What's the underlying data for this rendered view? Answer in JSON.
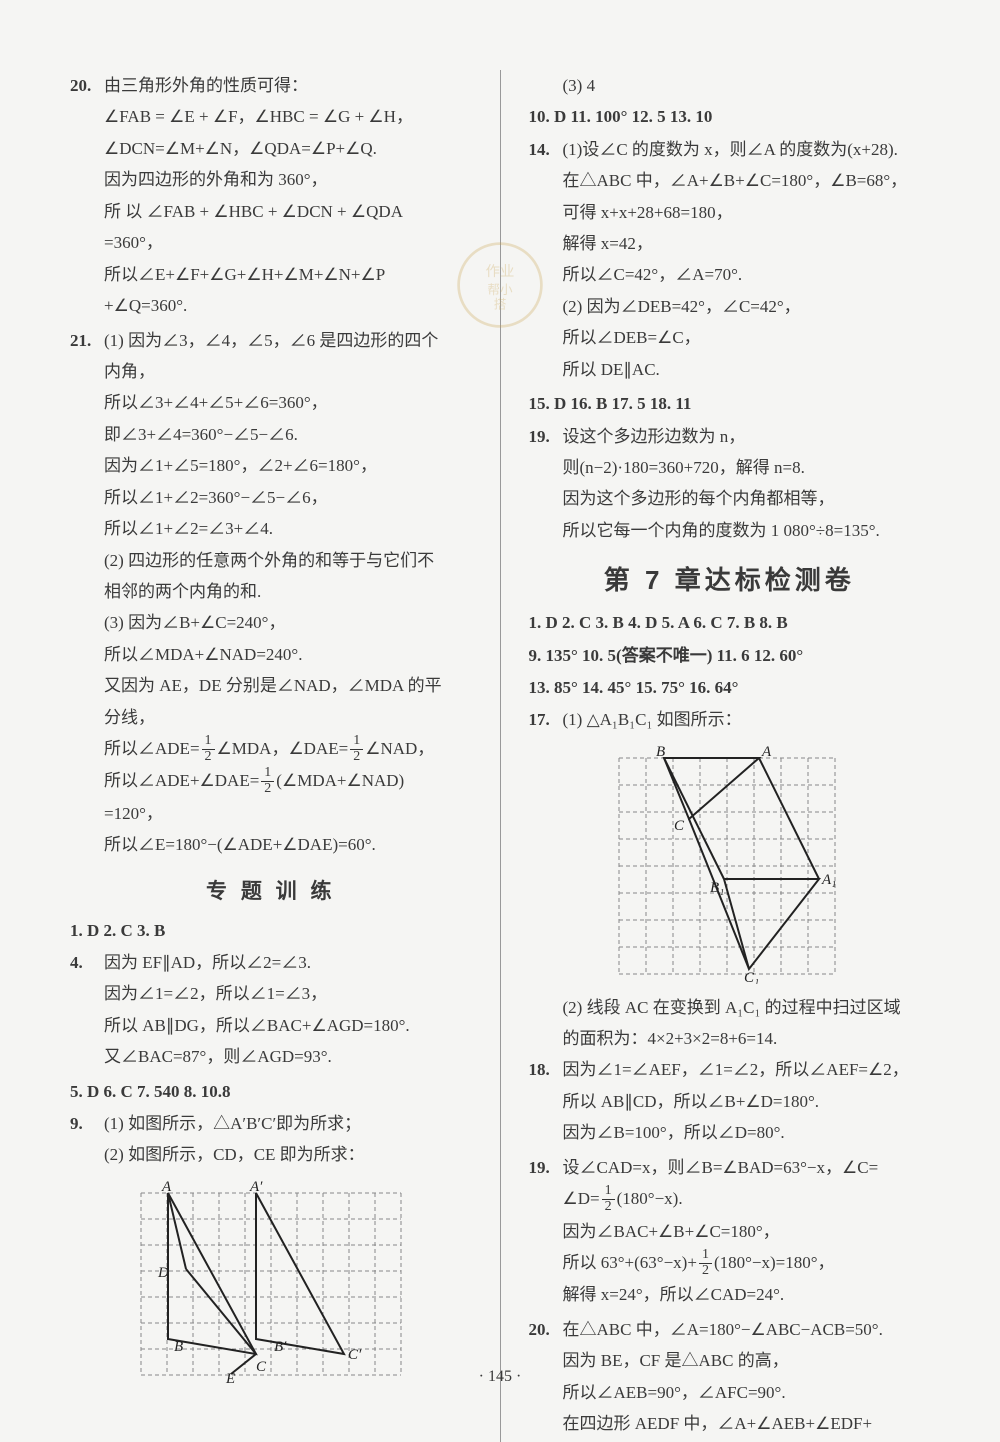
{
  "page_number": "· 145 ·",
  "left": {
    "p20": {
      "num": "20.",
      "lines": [
        "由三角形外角的性质可得：",
        "∠FAB = ∠E + ∠F，∠HBC = ∠G + ∠H，",
        "∠DCN=∠M+∠N，∠QDA=∠P+∠Q.",
        "因为四边形的外角和为 360°，",
        "所 以 ∠FAB + ∠HBC + ∠DCN + ∠QDA",
        "=360°，",
        "所以∠E+∠F+∠G+∠H+∠M+∠N+∠P",
        "+∠Q=360°."
      ]
    },
    "p21": {
      "num": "21.",
      "lines": [
        "(1) 因为∠3，∠4，∠5，∠6 是四边形的四个",
        "内角，",
        "所以∠3+∠4+∠5+∠6=360°，",
        "即∠3+∠4=360°−∠5−∠6.",
        "因为∠1+∠5=180°，∠2+∠6=180°，",
        "所以∠1+∠2=360°−∠5−∠6，",
        "所以∠1+∠2=∠3+∠4.",
        "(2) 四边形的任意两个外角的和等于与它们不",
        "相邻的两个内角的和.",
        "(3) 因为∠B+∠C=240°，",
        "所以∠MDA+∠NAD=240°.",
        "又因为 AE，DE 分别是∠NAD，∠MDA 的平",
        "分线，"
      ],
      "eq1_pre": "所以∠ADE=",
      "eq1_mid1": "∠MDA，∠DAE=",
      "eq1_mid2": "∠NAD，",
      "eq2_pre": "所以∠ADE+∠DAE=",
      "eq2_post": "(∠MDA+∠NAD)",
      "eq2_res": "=120°，",
      "eq3": "所以∠E=180°−(∠ADE+∠DAE)=60°."
    },
    "section1_title": "专 题 训 练",
    "zt_row1": "1. D   2. C   3. B",
    "p4": {
      "num": "4.",
      "lines": [
        "因为 EF∥AD，所以∠2=∠3.",
        "因为∠1=∠2，所以∠1=∠3，",
        "所以 AB∥DG，所以∠BAC+∠AGD=180°.",
        "又∠BAC=87°，则∠AGD=93°."
      ]
    },
    "zt_row2": "5. D   6. C   7. 540   8. 10.8",
    "p9": {
      "num": "9.",
      "lines": [
        "(1) 如图所示，△A′B′C′即为所求；",
        "(2) 如图所示，CD，CE 即为所求："
      ]
    },
    "fig9": {
      "grid_color": "#888",
      "line_color": "#222",
      "cols": 10,
      "rows": 7,
      "labels": [
        "A",
        "A′",
        "D",
        "B",
        "B′",
        "C",
        "C′",
        "E"
      ]
    }
  },
  "right": {
    "p9c_line": "(3) 4",
    "row1": "10. D   11. 100°   12. 5   13. 10",
    "p14": {
      "num": "14.",
      "lines": [
        "(1)设∠C 的度数为 x，则∠A 的度数为(x+28).",
        "在△ABC 中，∠A+∠B+∠C=180°，∠B=68°，",
        "可得 x+x+28+68=180，",
        "解得 x=42，",
        "所以∠C=42°，∠A=70°.",
        "(2) 因为∠DEB=42°，∠C=42°，",
        "所以∠DEB=∠C，",
        "所以 DE∥AC."
      ]
    },
    "row2": "15. D   16. B   17. 5   18. 11",
    "p19a": {
      "num": "19.",
      "lines": [
        "设这个多边形边数为 n，",
        "则(n−2)·180=360+720，解得 n=8.",
        "因为这个多边形的每个内角都相等，",
        "所以它每一个内角的度数为 1 080°÷8=135°."
      ]
    },
    "section2_title": "第 7 章达标检测卷",
    "ch7_row1": "1. D  2. C  3. B  4. D  5. A  6. C  7. B  8. B",
    "ch7_row2": "9. 135°   10. 5(答案不唯一)   11. 6   12. 60°",
    "ch7_row3": "13. 85°   14. 45°   15. 75°   16. 64°",
    "p17": {
      "num": "17.",
      "line1": "(1) △A₁B₁C₁ 如图所示：",
      "fig": {
        "grid_color": "#888",
        "line_color": "#222",
        "cols": 8,
        "rows": 8,
        "labels": [
          "B",
          "A",
          "C",
          "B₁",
          "A₁",
          "C₁"
        ]
      },
      "line2a": "(2) 线段 AC 在变换到 A₁C₁ 的过程中扫过区域",
      "line2b": "的面积为：4×2+3×2=8+6=14."
    },
    "p18": {
      "num": "18.",
      "lines": [
        "因为∠1=∠AEF，∠1=∠2，所以∠AEF=∠2，",
        "所以 AB∥CD，所以∠B+∠D=180°.",
        "因为∠B=100°，所以∠D=80°."
      ]
    },
    "p19b": {
      "num": "19.",
      "line1": "设∠CAD=x，则∠B=∠BAD=63°−x，∠C=",
      "eq_pre": "∠D=",
      "eq_post": "(180°−x).",
      "line2": "因为∠BAC+∠B+∠C=180°，",
      "line3_pre": "所以 63°+(63°−x)+",
      "line3_post": "(180°−x)=180°，",
      "line4": "解得 x=24°，所以∠CAD=24°."
    },
    "p20b": {
      "num": "20.",
      "lines": [
        "在△ABC 中，∠A=180°−∠ABC−ACB=50°.",
        "因为 BE，CF 是△ABC 的高，",
        "所以∠AEB=90°，∠AFC=90°.",
        "在四边形 AEDF 中，∠A+∠AEB+∠EDF+"
      ]
    }
  },
  "frac": {
    "n": "1",
    "d": "2"
  }
}
